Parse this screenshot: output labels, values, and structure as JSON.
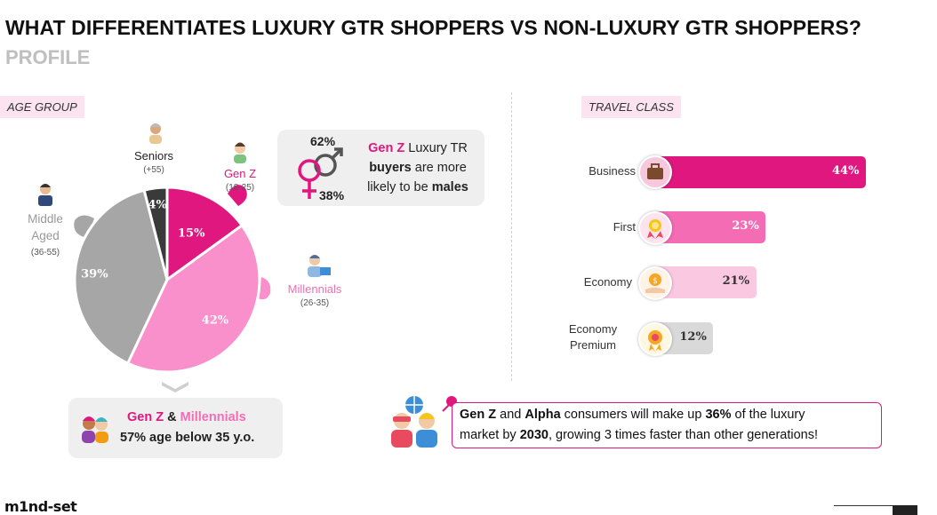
{
  "header": {
    "title": "WHAT DIFFERENTIATES LUXURY GTR SHOPPERS VS NON-LUXURY GTR SHOPPERS?",
    "subtitle": "PROFILE"
  },
  "age_section": {
    "tag": "AGE GROUP",
    "labels": {
      "seniors": {
        "name": "Seniors",
        "range": "(+55)"
      },
      "genz": {
        "name": "Gen Z",
        "range": "(18-25)"
      },
      "middle": {
        "name_line1": "Middle",
        "name_line2": "Aged",
        "range": "(36-55)"
      },
      "millennials": {
        "name": "Millennials",
        "range": "(26-35)"
      }
    },
    "gender_card": {
      "pct_male": "62%",
      "pct_female": "38%",
      "text_genz": "Gen Z",
      "text_rest1": "Luxury TR",
      "text_buyers": "buyers",
      "text_rest2": "are more",
      "text_line3a": "likely to be",
      "text_males": "males"
    },
    "summary_card": {
      "genz": "Gen Z",
      "amp": "&",
      "millennials": "Millennials",
      "line2": "57% age below 35 y.o."
    }
  },
  "chart_data": [
    {
      "type": "pie",
      "categories": [
        "Gen Z",
        "Millennials",
        "Middle Aged",
        "Seniors"
      ],
      "values": [
        15,
        42,
        39,
        4
      ],
      "labels": [
        "15%",
        "42%",
        "39%",
        "4%"
      ],
      "colors": [
        "#e0177e",
        "#f98fcb",
        "#a6a6a6",
        "#3a3a3a"
      ]
    },
    {
      "type": "bar",
      "title": "TRAVEL CLASS",
      "categories": [
        "Business",
        "First",
        "Economy",
        "Economy Premium"
      ],
      "values": [
        44,
        23,
        21,
        12
      ],
      "labels": [
        "44%",
        "23%",
        "21%",
        "12%"
      ],
      "colors": [
        "#e0177e",
        "#f36cb4",
        "#fbc8e2",
        "#d9d9d9"
      ],
      "value_colors": [
        "#ffffff",
        "#ffffff",
        "#333333",
        "#333333"
      ]
    }
  ],
  "travel_labels": {
    "business": "Business",
    "first": "First",
    "economy": "Economy",
    "premium1": "Economy",
    "premium2": "Premium"
  },
  "footer_note": {
    "p1": "Gen Z",
    "p2": "and",
    "p3": "Alpha",
    "p4": "consumers will make up",
    "p5": "36%",
    "p6": "of the luxury",
    "p7": "market by",
    "p8": "2030",
    "p9": ", growing 3 times faster than other generations!"
  },
  "brand": {
    "logo": "m1nd-set"
  },
  "colors": {
    "accent": "#e0177e",
    "accent_light": "#f98fcb",
    "grey": "#a6a6a6",
    "dark": "#3a3a3a"
  }
}
